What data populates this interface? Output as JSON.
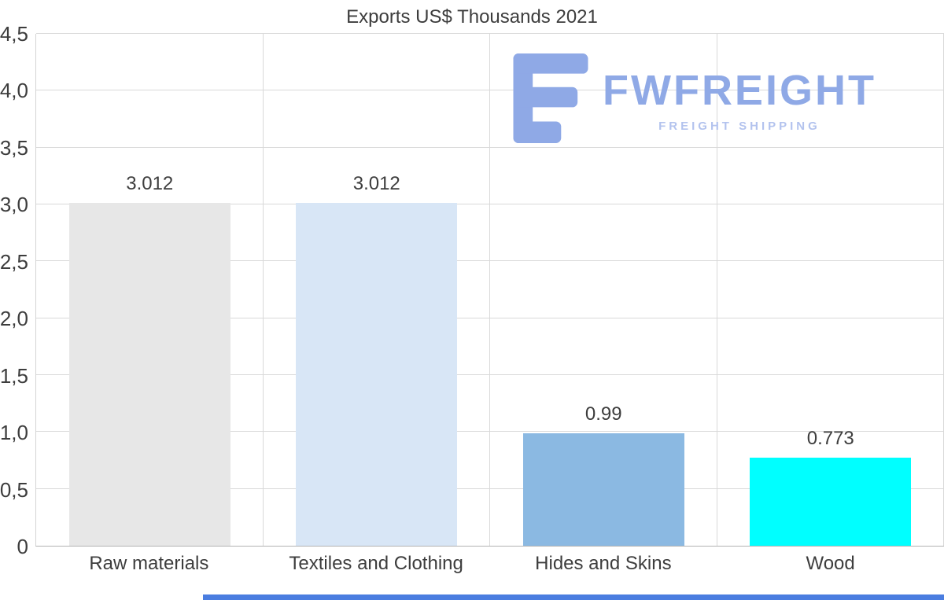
{
  "page": {
    "title": "Exports US$ Thousands 2021"
  },
  "logo": {
    "name": "FWFREIGHT",
    "tagline": "FREIGHT SHIPPING",
    "color": "#8fa9e6",
    "tagline_color": "#b3c3ee"
  },
  "accent": {
    "bottom_bar_color": "#4a7de0"
  },
  "chart_data": {
    "type": "bar",
    "title": "Exports US$ Thousands 2021",
    "categories": [
      "Raw materials",
      "Textiles and Clothing",
      "Hides and Skins",
      "Wood"
    ],
    "values": [
      3.012,
      3.012,
      0.99,
      0.773
    ],
    "data_labels": [
      "3.012",
      "3.012",
      "0.99",
      "0.773"
    ],
    "bar_colors": [
      "#e7e7e7",
      "#d8e6f6",
      "#8bb9e2",
      "#00ffff"
    ],
    "xlabel": "",
    "ylabel": "",
    "ylim": [
      0,
      4.5
    ],
    "yticks": [
      0,
      0.5,
      1,
      1.5,
      2,
      2.5,
      3,
      3.5,
      4,
      4.5
    ],
    "ytick_labels": [
      "0",
      "0,5",
      "1,0",
      "1,5",
      "2,0",
      "2,5",
      "3,0",
      "3,5",
      "4,0",
      "4,5"
    ],
    "grid": true,
    "legend": false
  }
}
